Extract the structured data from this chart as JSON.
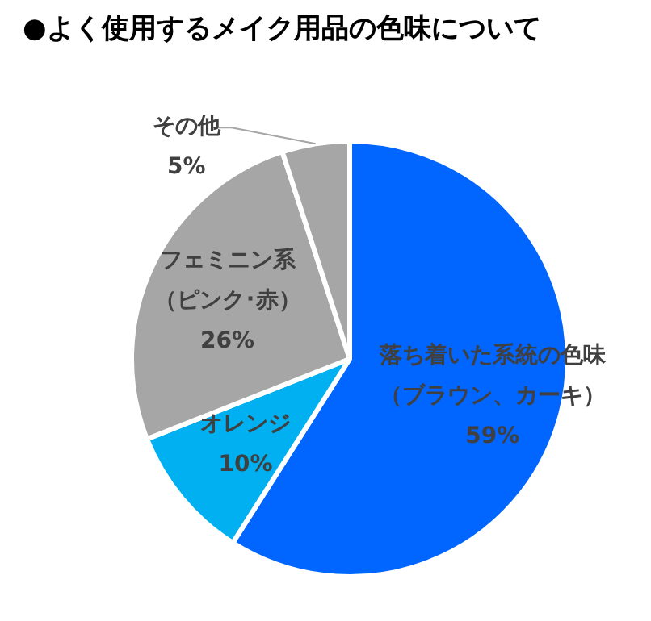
{
  "chart_data": {
    "type": "pie",
    "title": "●よく使用するメイク用品の色味について",
    "categories": [
      "落ち着いた系統の色味（ブラウン、カーキ）",
      "オレンジ",
      "フェミニン系（ピンク･赤）",
      "その他"
    ],
    "values": [
      59,
      10,
      26,
      5
    ],
    "colors": [
      "#0066ff",
      "#00b0f0",
      "#a6a6a6",
      "#a6a6a6"
    ],
    "value_labels": [
      "59%",
      "10%",
      "26%",
      "5%"
    ],
    "legend": false
  }
}
